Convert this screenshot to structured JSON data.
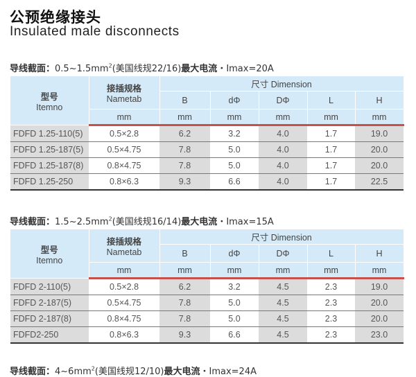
{
  "title_cn": "公预绝缘接头",
  "title_en": "Insulated male disconnects",
  "headers": {
    "item_cn": "型号",
    "item_en": "Itemno",
    "nametab_cn": "接插规格",
    "nametab_en": "Nametab",
    "dimension": "尺寸 Dimension",
    "cols": [
      "B",
      "dΦ",
      "DΦ",
      "L",
      "H"
    ],
    "unit": "mm"
  },
  "sections": [
    {
      "caption_prefix": "导线截面：",
      "caption_range": "0.5~1.5mm",
      "caption_sup": "2",
      "caption_gauge": "(美国线规22/16)",
      "caption_current_label": "最大电流",
      "caption_current": "・Imax=20A",
      "rows": [
        [
          "FDFD 1.25-110(5)",
          "0.5×2.8",
          "6.2",
          "3.2",
          "4.0",
          "1.7",
          "19.0"
        ],
        [
          "FDFD 1.25-187(5)",
          "0.5×4.75",
          "7.8",
          "5.0",
          "4.0",
          "1.7",
          "20.0"
        ],
        [
          "FDFD 1.25-187(8)",
          "0.8×4.75",
          "7.8",
          "5.0",
          "4.0",
          "1.7",
          "20.0"
        ],
        [
          "FDFD 1.25-250",
          "0.8×6.3",
          "9.3",
          "6.6",
          "4.0",
          "1.7",
          "22.5"
        ]
      ]
    },
    {
      "caption_prefix": "导线截面：",
      "caption_range": "1.5~2.5mm",
      "caption_sup": "2",
      "caption_gauge": "(美国线规16/14)",
      "caption_current_label": "最大电流",
      "caption_current": "・Imax=15A",
      "rows": [
        [
          "FDFD 2-110(5)",
          "0.5×2.8",
          "6.2",
          "3.2",
          "4.5",
          "2.3",
          "19.0"
        ],
        [
          "FDFD 2-187(5)",
          "0.5×4.75",
          "7.8",
          "5.0",
          "4.5",
          "2.3",
          "20.0"
        ],
        [
          "FDFD 2-187(8)",
          "0.8×4.75",
          "7.8",
          "5.0",
          "4.5",
          "2.3",
          "20.0"
        ],
        [
          "FDFD2-250",
          "0.8×6.3",
          "9.3",
          "6.6",
          "4.5",
          "2.3",
          "23.0"
        ]
      ]
    },
    {
      "caption_prefix": "导线截面：",
      "caption_range": "4~6mm",
      "caption_sup": "2",
      "caption_gauge": "(美国线规12/10)",
      "caption_current_label": "最大电流",
      "caption_current": "・Imax=24A"
    }
  ]
}
